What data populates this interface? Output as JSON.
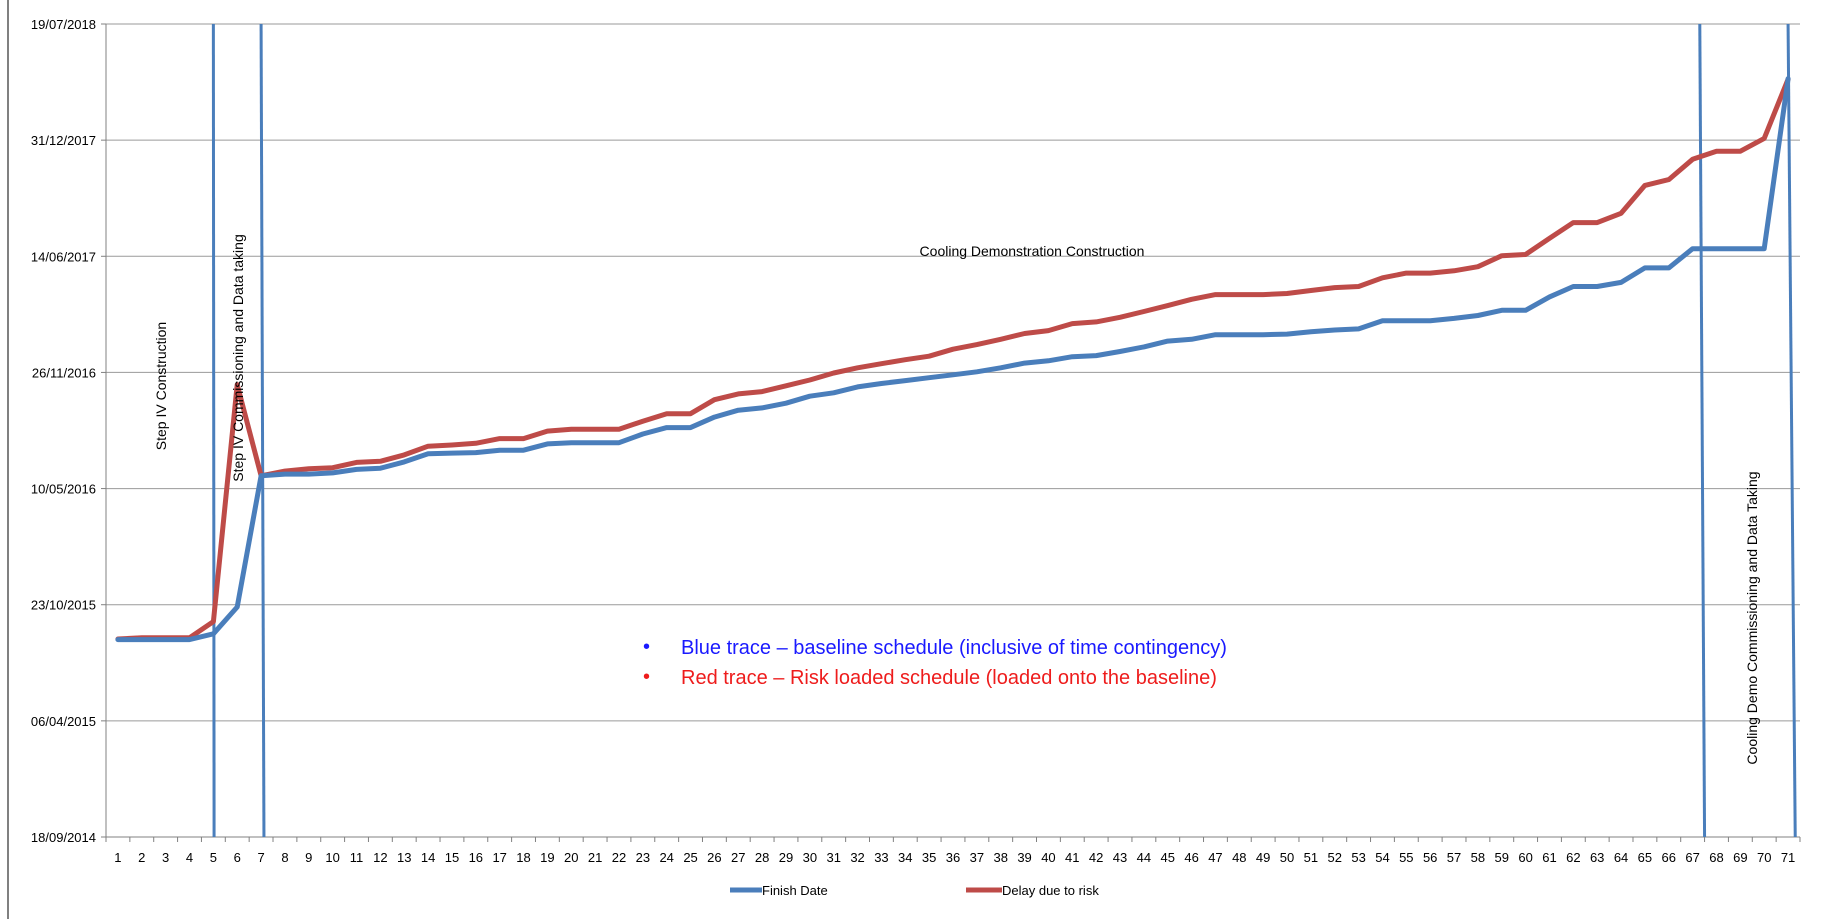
{
  "chart_data": {
    "type": "line",
    "categories": [
      "1",
      "2",
      "3",
      "4",
      "5",
      "6",
      "7",
      "8",
      "9",
      "10",
      "11",
      "12",
      "13",
      "14",
      "15",
      "16",
      "17",
      "18",
      "19",
      "20",
      "21",
      "22",
      "23",
      "24",
      "25",
      "26",
      "27",
      "28",
      "29",
      "30",
      "31",
      "32",
      "33",
      "34",
      "35",
      "36",
      "37",
      "38",
      "39",
      "40",
      "41",
      "42",
      "43",
      "44",
      "45",
      "46",
      "47",
      "48",
      "49",
      "50",
      "51",
      "52",
      "53",
      "54",
      "55",
      "56",
      "57",
      "58",
      "59",
      "60",
      "61",
      "62",
      "63",
      "64",
      "65",
      "66",
      "67",
      "68",
      "69",
      "70",
      "71"
    ],
    "y_ticks": [
      "18/09/2014",
      "06/04/2015",
      "23/10/2015",
      "10/05/2016",
      "26/11/2016",
      "14/06/2017",
      "31/12/2017",
      "19/07/2018"
    ],
    "ylim": [
      "18/09/2014",
      "19/07/2018"
    ],
    "grid": "horizontal",
    "legend_position": "bottom",
    "series": [
      {
        "name": "Finish Date",
        "color": "#4a7ebb",
        "values": [
          "24/08/2015",
          "24/08/2015",
          "24/08/2015",
          "24/08/2015",
          "03/09/2015",
          "19/10/2015",
          "01/06/2016",
          "04/06/2016",
          "04/06/2016",
          "06/06/2016",
          "12/06/2016",
          "14/06/2016",
          "25/06/2016",
          "09/07/2016",
          "10/07/2016",
          "11/07/2016",
          "15/07/2016",
          "15/07/2016",
          "26/07/2016",
          "28/07/2016",
          "28/07/2016",
          "28/07/2016",
          "12/08/2016",
          "23/08/2016",
          "23/08/2016",
          "10/09/2016",
          "22/09/2016",
          "26/09/2016",
          "04/10/2016",
          "16/10/2016",
          "22/10/2016",
          "01/11/2016",
          "07/11/2016",
          "12/11/2016",
          "17/11/2016",
          "22/11/2016",
          "27/11/2016",
          "04/12/2016",
          "12/12/2016",
          "16/12/2016",
          "23/12/2016",
          "25/12/2016",
          "01/01/2017",
          "09/01/2017",
          "19/01/2017",
          "22/01/2017",
          "30/01/2017",
          "30/01/2017",
          "30/01/2017",
          "31/01/2017",
          "04/02/2017",
          "07/02/2017",
          "09/02/2017",
          "23/02/2017",
          "23/02/2017",
          "23/02/2017",
          "27/02/2017",
          "04/03/2017",
          "13/03/2017",
          "13/03/2017",
          "05/04/2017",
          "23/04/2017",
          "23/04/2017",
          "30/04/2017",
          "25/05/2017",
          "25/05/2017",
          "27/06/2017",
          "27/06/2017",
          "27/06/2017",
          "27/06/2017",
          "16/04/2018"
        ]
      },
      {
        "name": "Delay due to risk",
        "color": "#be4b48",
        "values": [
          "25/08/2015",
          "27/08/2015",
          "27/08/2015",
          "27/08/2015",
          "24/09/2015",
          "05/11/2016",
          "01/06/2016",
          "09/06/2016",
          "13/06/2016",
          "15/06/2016",
          "24/06/2016",
          "26/06/2016",
          "07/07/2016",
          "22/07/2016",
          "24/07/2016",
          "27/07/2016",
          "04/08/2016",
          "04/08/2016",
          "17/08/2016",
          "20/08/2016",
          "20/08/2016",
          "20/08/2016",
          "03/09/2016",
          "16/09/2016",
          "16/09/2016",
          "10/10/2016",
          "20/10/2016",
          "24/10/2016",
          "03/11/2016",
          "13/11/2016",
          "25/11/2016",
          "04/12/2016",
          "11/12/2016",
          "18/12/2016",
          "24/12/2016",
          "05/01/2017",
          "13/01/2017",
          "22/01/2017",
          "01/02/2017",
          "06/02/2017",
          "18/02/2017",
          "21/02/2017",
          "01/03/2017",
          "11/03/2017",
          "21/03/2017",
          "01/04/2017",
          "09/04/2017",
          "09/04/2017",
          "09/04/2017",
          "11/04/2017",
          "16/04/2017",
          "21/04/2017",
          "23/04/2017",
          "08/05/2017",
          "16/05/2017",
          "16/05/2017",
          "20/05/2017",
          "27/05/2017",
          "15/06/2017",
          "17/06/2017",
          "15/07/2017",
          "11/08/2017",
          "11/08/2017",
          "27/08/2017",
          "14/10/2017",
          "24/10/2017",
          "28/11/2017",
          "12/12/2017",
          "12/12/2017",
          "03/01/2018",
          "15/04/2018"
        ]
      }
    ],
    "markers": [
      {
        "x_from": 5,
        "x_to": 5.03,
        "color": "#4a7ebb"
      },
      {
        "x_from": 7,
        "x_to": 7.12,
        "color": "#4a7ebb"
      },
      {
        "x_from": 67.3,
        "x_to": 67.5,
        "color": "#4a7ebb"
      },
      {
        "x_from": 71,
        "x_to": 71.3,
        "color": "#4a7ebb"
      }
    ],
    "annotations": {
      "phase_1": "Step IV Construction",
      "phase_2": "Step IV Commissioning and Data taking",
      "phase_3": "Cooling Demonstration Construction",
      "phase_4": "Cooling Demo Commissioning and Data Taking",
      "note_blue_bullet": "•",
      "note_blue": "Blue trace – baseline schedule (inclusive of time contingency)",
      "note_red_bullet": "•",
      "note_red": "Red trace – Risk loaded schedule (loaded onto the baseline)"
    },
    "note_colors": {
      "blue": "#1a1aff",
      "red": "#ee1c1c"
    }
  }
}
